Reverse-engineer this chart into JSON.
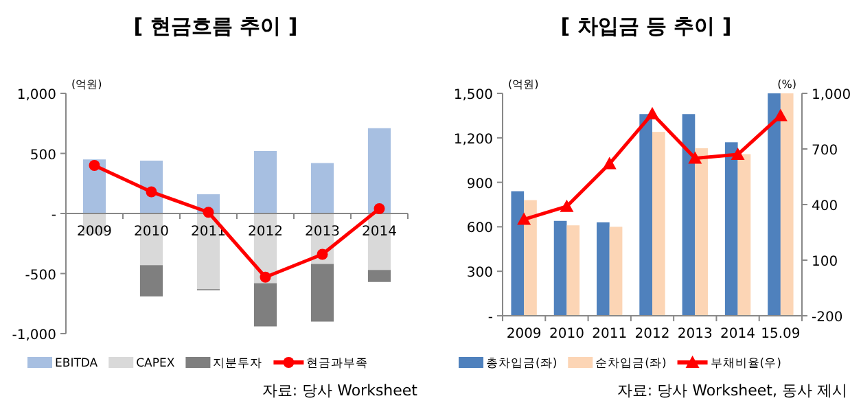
{
  "chart_data": [
    {
      "type": "bar",
      "stacked": true,
      "title": "[ 현금흐름 추이 ]",
      "categories": [
        "2009",
        "2010",
        "2011",
        "2012",
        "2013",
        "2014"
      ],
      "ylim": [
        -1000,
        1000
      ],
      "yticks": [
        {
          "value": -1000,
          "label": "-1,000"
        },
        -500,
        {
          "value": 0,
          "label": "-"
        },
        500,
        {
          "value": 1000,
          "label": "1,000"
        }
      ],
      "series": [
        {
          "name": "EBITDA",
          "color": "#a7bfe1",
          "values": [
            450,
            440,
            160,
            520,
            420,
            710
          ]
        },
        {
          "name": "CAPEX",
          "color": "#d9d9d9",
          "values": [
            -170,
            -430,
            -630,
            -580,
            -420,
            -470
          ]
        },
        {
          "name": "지분투자",
          "color": "#7f7f7f",
          "values": [
            0,
            -260,
            -10,
            -360,
            -480,
            -100
          ]
        },
        {
          "name": "현금과부족",
          "type": "line",
          "marker": "circle",
          "color": "#ff0000",
          "values": [
            400,
            180,
            10,
            -530,
            -340,
            40
          ]
        }
      ],
      "legend": "bottom",
      "annotations": [
        "(억원)",
        "자료: 당사 Worksheet"
      ]
    },
    {
      "type": "bar",
      "title": "[ 차입금 등 추이 ]",
      "categories": [
        "2009",
        "2010",
        "2011",
        "2012",
        "2013",
        "2014",
        "15.09"
      ],
      "ylim": [
        0,
        1500
      ],
      "yticks": [
        {
          "value": 0,
          "label": "-"
        },
        300,
        600,
        900,
        {
          "value": 1200,
          "label": "1,200"
        },
        {
          "value": 1500,
          "label": "1,500"
        }
      ],
      "y2lim": [
        -200,
        1000
      ],
      "y2ticks": [
        -200,
        100,
        400,
        700,
        {
          "value": 1000,
          "label": "1,000"
        }
      ],
      "series": [
        {
          "name": "총차입금(좌)",
          "color": "#4f81bd",
          "values": [
            840,
            640,
            630,
            1360,
            1360,
            1170,
            1500
          ]
        },
        {
          "name": "순차입금(좌)",
          "color": "#fcd5b5",
          "values": [
            780,
            610,
            600,
            1240,
            1130,
            1090,
            1500
          ]
        },
        {
          "name": "부채비율(우)",
          "type": "line",
          "axis": "y2",
          "marker": "triangle",
          "color": "#ff0000",
          "values": [
            320,
            390,
            620,
            890,
            650,
            670,
            880
          ]
        }
      ],
      "legend": "bottom",
      "annotations": [
        "(억원)",
        "(%)",
        "자료: 당사 Worksheet, 동사 제시"
      ]
    }
  ]
}
